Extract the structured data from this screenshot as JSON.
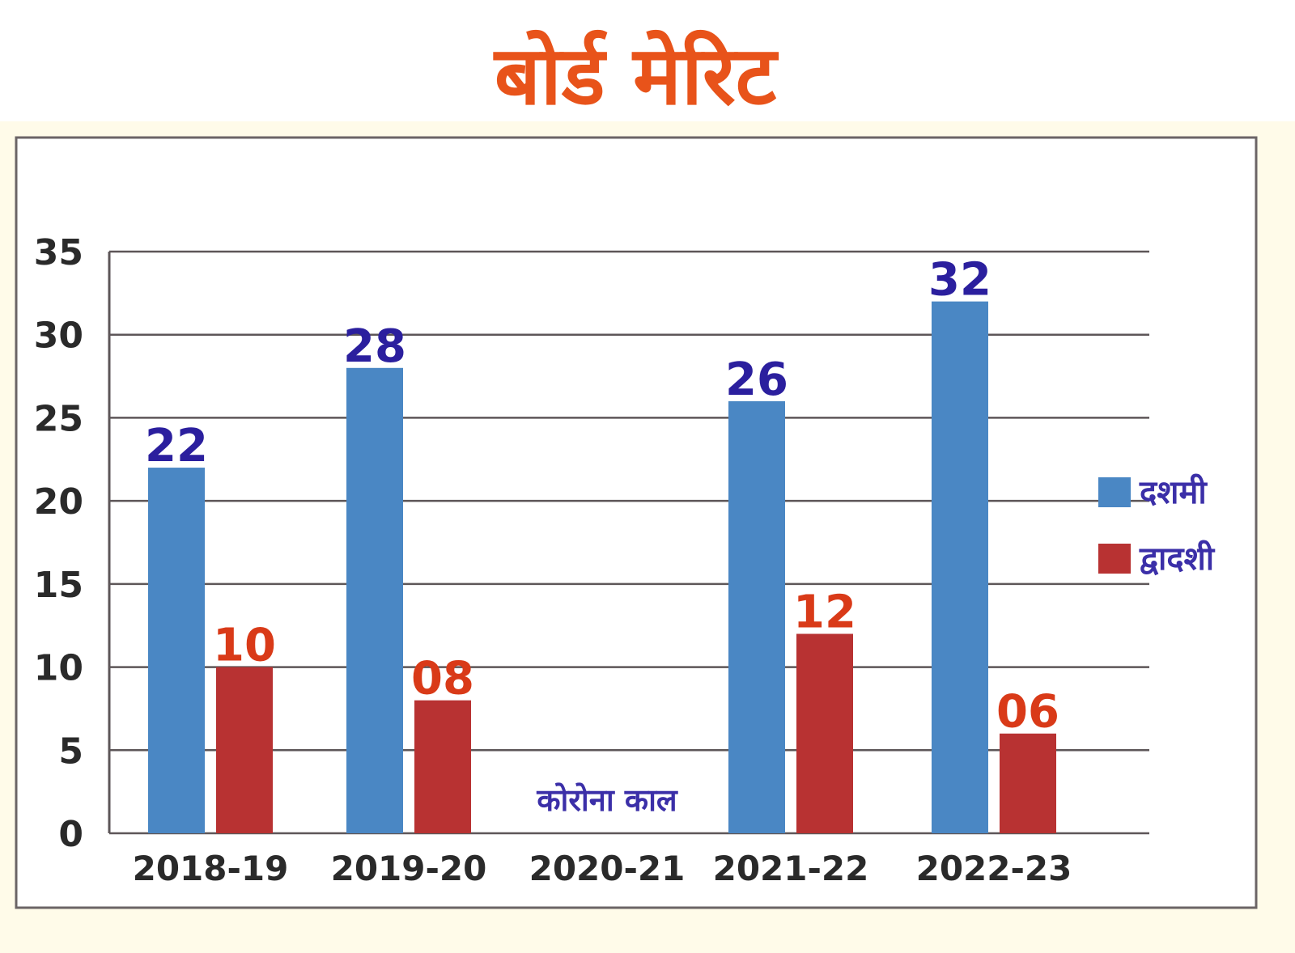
{
  "chart_data": {
    "type": "bar",
    "title": "बोर्ड मेरिट",
    "categories": [
      "2018-19",
      "2019-20",
      "2020-21",
      "2021-22",
      "2022-23"
    ],
    "series": [
      {
        "name": "दशमी",
        "color": "#4a87c4",
        "label_color": "#2b1f9e",
        "values": [
          22,
          28,
          null,
          26,
          32
        ],
        "labels": [
          "22",
          "28",
          "",
          "26",
          "32"
        ]
      },
      {
        "name": "द्वादशी",
        "color": "#b83232",
        "label_color": "#d93a18",
        "values": [
          10,
          8,
          null,
          12,
          6
        ],
        "labels": [
          "10",
          "08",
          "",
          "12",
          "06"
        ]
      }
    ],
    "annotations": [
      {
        "category": "2020-21",
        "text": "कोरोना काल",
        "color": "#3b2fa8"
      }
    ],
    "yticks": [
      0,
      5,
      10,
      15,
      20,
      25,
      30,
      35
    ],
    "ylim": [
      0,
      35
    ],
    "xlabel": "",
    "ylabel": "",
    "grid": true,
    "legend": "right",
    "title_color": "#e8531a"
  }
}
